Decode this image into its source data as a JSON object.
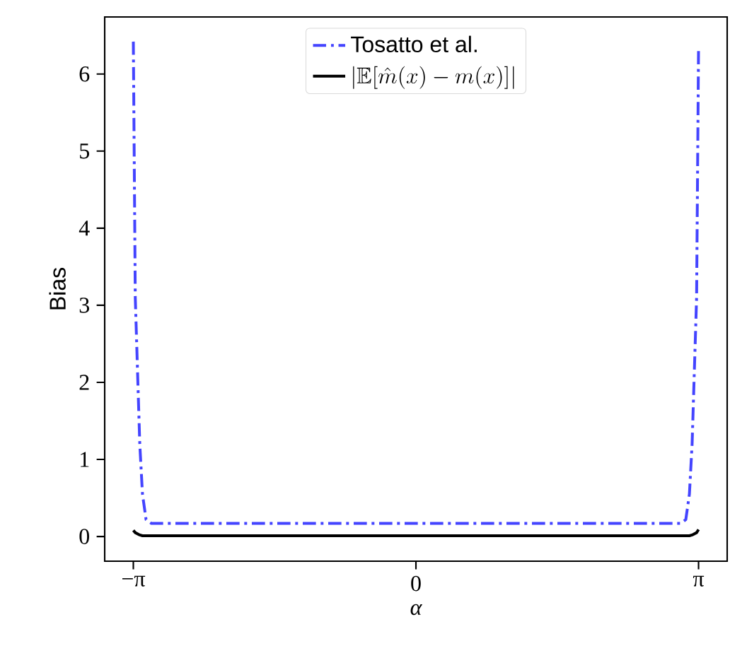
{
  "chart_data": {
    "type": "line",
    "xlabel": "α",
    "ylabel": "Bias",
    "x": [
      -3.1416,
      -3.12,
      -3.07,
      -3.04,
      -3.0,
      -2.94,
      -2.0,
      -1.0,
      0.0,
      1.0,
      2.0,
      2.94,
      3.0,
      3.04,
      3.07,
      3.12,
      3.1416
    ],
    "series": [
      {
        "name": "Tosatto et al.",
        "color": "#4444ff",
        "line_style": "dashdot",
        "values": [
          6.42,
          3.1,
          1.2,
          0.55,
          0.22,
          0.17,
          0.17,
          0.17,
          0.17,
          0.17,
          0.17,
          0.17,
          0.22,
          0.55,
          1.2,
          3.1,
          6.35
        ]
      },
      {
        "name": "|\\mathbb{E}[\\hat{m}(x)-m(x)]|",
        "color": "#000000",
        "line_style": "solid",
        "values": [
          0.08,
          0.05,
          0.02,
          0.01,
          0.01,
          0.01,
          0.01,
          0.01,
          0.01,
          0.01,
          0.01,
          0.01,
          0.01,
          0.01,
          0.02,
          0.05,
          0.09
        ]
      }
    ],
    "xlim": [
      -3.46,
      3.46
    ],
    "ylim": [
      -0.32,
      6.74
    ],
    "xticks": [
      {
        "value": -3.1416,
        "label": "−π"
      },
      0,
      {
        "value": 3.1416,
        "label": "π"
      }
    ],
    "yticks": [
      0,
      1,
      2,
      3,
      4,
      5,
      6
    ],
    "legend": "top",
    "marker": "none",
    "grid": false
  }
}
